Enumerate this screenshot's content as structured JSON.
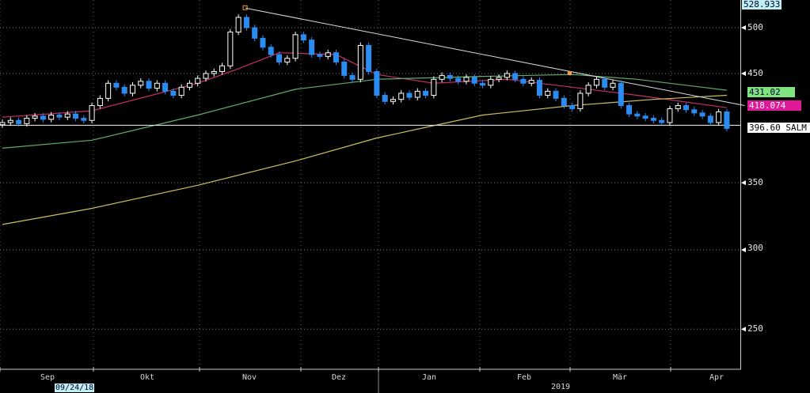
{
  "chart_data": {
    "type": "candlestick",
    "scale": "log",
    "ylim": [
      230,
      530
    ],
    "yticks": [
      500,
      450,
      350,
      300,
      250
    ],
    "months": [
      "Sep",
      "Okt",
      "Nov",
      "Dez",
      "Jan",
      "Feb",
      "Mär",
      "Apr"
    ],
    "year_label": "2019",
    "start_date_label": "09/24/18",
    "opens": [
      400,
      402,
      404,
      401,
      406,
      408,
      405,
      409,
      407,
      410,
      406,
      404,
      418,
      425,
      440,
      436,
      430,
      438,
      442,
      435,
      440,
      432,
      428,
      436,
      440,
      445,
      450,
      452,
      458,
      495,
      512,
      500,
      488,
      478,
      470,
      462,
      466,
      492,
      486,
      470,
      468,
      472,
      462,
      448,
      444,
      480,
      452,
      428,
      422,
      424,
      430,
      426,
      432,
      428,
      444,
      448,
      445,
      442,
      446,
      440,
      438,
      444,
      446,
      450,
      444,
      440,
      443,
      428,
      432,
      425,
      418,
      415,
      430,
      438,
      444,
      436,
      440,
      418,
      410,
      408,
      406,
      404,
      402,
      415,
      418,
      414,
      411,
      408,
      402,
      412
    ],
    "closes": [
      402,
      404,
      401,
      406,
      408,
      405,
      409,
      407,
      410,
      406,
      404,
      418,
      425,
      440,
      436,
      430,
      438,
      442,
      435,
      440,
      432,
      428,
      436,
      440,
      445,
      450,
      452,
      458,
      495,
      512,
      500,
      488,
      478,
      470,
      462,
      466,
      492,
      486,
      470,
      468,
      472,
      462,
      448,
      444,
      480,
      452,
      428,
      422,
      424,
      430,
      426,
      432,
      428,
      444,
      448,
      445,
      442,
      446,
      440,
      438,
      444,
      446,
      450,
      444,
      440,
      443,
      428,
      432,
      425,
      418,
      415,
      430,
      438,
      444,
      436,
      440,
      418,
      410,
      408,
      406,
      404,
      402,
      415,
      418,
      414,
      411,
      408,
      402,
      412,
      396.6
    ],
    "moving_averages": [
      {
        "name": "ma-short",
        "color": "#c8306a",
        "last": "418.074",
        "points": [
          [
            0,
            407
          ],
          [
            11,
            413
          ],
          [
            24,
            440
          ],
          [
            29,
            455
          ],
          [
            34,
            472
          ],
          [
            41,
            470
          ],
          [
            46,
            449
          ],
          [
            53,
            440
          ],
          [
            62,
            444
          ],
          [
            70,
            436
          ],
          [
            78,
            428
          ],
          [
            89,
            416
          ]
        ]
      },
      {
        "name": "ma-mid",
        "color": "#5fae6a",
        "last": "431.02",
        "points": [
          [
            0,
            379
          ],
          [
            11,
            386
          ],
          [
            24,
            409
          ],
          [
            36,
            434
          ],
          [
            46,
            444
          ],
          [
            59,
            447
          ],
          [
            70,
            449
          ],
          [
            78,
            444
          ],
          [
            89,
            433
          ]
        ]
      },
      {
        "name": "ma-long",
        "color": "#c8c060",
        "points": [
          [
            0,
            318
          ],
          [
            11,
            330
          ],
          [
            24,
            348
          ],
          [
            36,
            368
          ],
          [
            46,
            388
          ],
          [
            59,
            409
          ],
          [
            70,
            418
          ],
          [
            80,
            424
          ],
          [
            89,
            428
          ]
        ]
      }
    ],
    "trendline": {
      "from": [
        29,
        523
      ],
      "to": [
        91,
        418
      ]
    },
    "last_price": "396.60 SALM",
    "last_value": 396.6,
    "high_label": "528.933"
  },
  "colors": {
    "up": "#ffffff",
    "down": "#2a8cf0",
    "bg": "#000000"
  }
}
